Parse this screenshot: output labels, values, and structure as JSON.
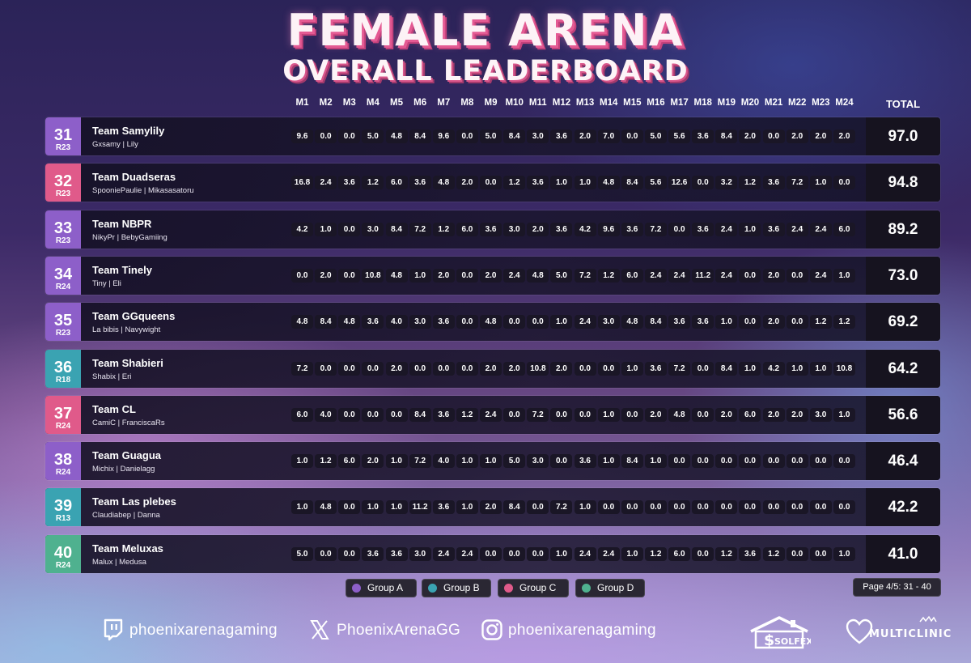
{
  "header": {
    "title": "FEMALE ARENA",
    "subtitle": "OVERALL LEADERBOARD"
  },
  "columns": [
    "M1",
    "M2",
    "M3",
    "M4",
    "M5",
    "M6",
    "M7",
    "M8",
    "M9",
    "M10",
    "M11",
    "M12",
    "M13",
    "M14",
    "M15",
    "M16",
    "M17",
    "M18",
    "M19",
    "M20",
    "M21",
    "M22",
    "M23",
    "M24"
  ],
  "total_label": "TOTAL",
  "colors": {
    "group_a": "#8d5fc9",
    "group_b": "#3aa3b2",
    "group_c": "#e05a8a",
    "group_d": "#4fb18f"
  },
  "rows": [
    {
      "rank": "31",
      "sub": "R23",
      "group": "group_a",
      "team": "Team Samylily",
      "players": "Gxsamy | Lily",
      "scores": [
        "9.6",
        "0.0",
        "0.0",
        "5.0",
        "4.8",
        "8.4",
        "9.6",
        "0.0",
        "5.0",
        "8.4",
        "3.0",
        "3.6",
        "2.0",
        "7.0",
        "0.0",
        "5.0",
        "5.6",
        "3.6",
        "8.4",
        "2.0",
        "0.0",
        "2.0",
        "2.0",
        "2.0"
      ],
      "total": "97.0"
    },
    {
      "rank": "32",
      "sub": "R23",
      "group": "group_c",
      "team": "Team Duadseras",
      "players": "SpooniePaulie | Mikasasatoru",
      "scores": [
        "16.8",
        "2.4",
        "3.6",
        "1.2",
        "6.0",
        "3.6",
        "4.8",
        "2.0",
        "0.0",
        "1.2",
        "3.6",
        "1.0",
        "1.0",
        "4.8",
        "8.4",
        "5.6",
        "12.6",
        "0.0",
        "3.2",
        "1.2",
        "3.6",
        "7.2",
        "1.0",
        "0.0"
      ],
      "total": "94.8"
    },
    {
      "rank": "33",
      "sub": "R23",
      "group": "group_a",
      "team": "Team NBPR",
      "players": "NikyPr | BebyGamiing",
      "scores": [
        "4.2",
        "1.0",
        "0.0",
        "3.0",
        "8.4",
        "7.2",
        "1.2",
        "6.0",
        "3.6",
        "3.0",
        "2.0",
        "3.6",
        "4.2",
        "9.6",
        "3.6",
        "7.2",
        "0.0",
        "3.6",
        "2.4",
        "1.0",
        "3.6",
        "2.4",
        "2.4",
        "6.0"
      ],
      "total": "89.2"
    },
    {
      "rank": "34",
      "sub": "R24",
      "group": "group_a",
      "team": "Team Tinely",
      "players": "Tiny | Eli",
      "scores": [
        "0.0",
        "2.0",
        "0.0",
        "10.8",
        "4.8",
        "1.0",
        "2.0",
        "0.0",
        "2.0",
        "2.4",
        "4.8",
        "5.0",
        "7.2",
        "1.2",
        "6.0",
        "2.4",
        "2.4",
        "11.2",
        "2.4",
        "0.0",
        "2.0",
        "0.0",
        "2.4",
        "1.0"
      ],
      "total": "73.0"
    },
    {
      "rank": "35",
      "sub": "R23",
      "group": "group_a",
      "team": "Team GGqueens",
      "players": "La bibis | Navywight",
      "scores": [
        "4.8",
        "8.4",
        "4.8",
        "3.6",
        "4.0",
        "3.0",
        "3.6",
        "0.0",
        "4.8",
        "0.0",
        "0.0",
        "1.0",
        "2.4",
        "3.0",
        "4.8",
        "8.4",
        "3.6",
        "3.6",
        "1.0",
        "0.0",
        "2.0",
        "0.0",
        "1.2",
        "1.2"
      ],
      "total": "69.2"
    },
    {
      "rank": "36",
      "sub": "R18",
      "group": "group_b",
      "team": "Team Shabieri",
      "players": "Shabix | Eri",
      "scores": [
        "7.2",
        "0.0",
        "0.0",
        "0.0",
        "2.0",
        "0.0",
        "0.0",
        "0.0",
        "2.0",
        "2.0",
        "10.8",
        "2.0",
        "0.0",
        "0.0",
        "1.0",
        "3.6",
        "7.2",
        "0.0",
        "8.4",
        "1.0",
        "4.2",
        "1.0",
        "1.0",
        "10.8"
      ],
      "total": "64.2"
    },
    {
      "rank": "37",
      "sub": "R24",
      "group": "group_c",
      "team": "Team CL",
      "players": "CamiC | FranciscaRs",
      "scores": [
        "6.0",
        "4.0",
        "0.0",
        "0.0",
        "0.0",
        "8.4",
        "3.6",
        "1.2",
        "2.4",
        "0.0",
        "7.2",
        "0.0",
        "0.0",
        "1.0",
        "0.0",
        "2.0",
        "4.8",
        "0.0",
        "2.0",
        "6.0",
        "2.0",
        "2.0",
        "3.0",
        "1.0"
      ],
      "total": "56.6"
    },
    {
      "rank": "38",
      "sub": "R24",
      "group": "group_a",
      "team": "Team Guagua",
      "players": "Michix | Danielagg",
      "scores": [
        "1.0",
        "1.2",
        "6.0",
        "2.0",
        "1.0",
        "7.2",
        "4.0",
        "1.0",
        "1.0",
        "5.0",
        "3.0",
        "0.0",
        "3.6",
        "1.0",
        "8.4",
        "1.0",
        "0.0",
        "0.0",
        "0.0",
        "0.0",
        "0.0",
        "0.0",
        "0.0",
        "0.0"
      ],
      "total": "46.4"
    },
    {
      "rank": "39",
      "sub": "R13",
      "group": "group_b",
      "team": "Team Las plebes",
      "players": "Claudiabep | Danna",
      "scores": [
        "1.0",
        "4.8",
        "0.0",
        "1.0",
        "1.0",
        "11.2",
        "3.6",
        "1.0",
        "2.0",
        "8.4",
        "0.0",
        "7.2",
        "1.0",
        "0.0",
        "0.0",
        "0.0",
        "0.0",
        "0.0",
        "0.0",
        "0.0",
        "0.0",
        "0.0",
        "0.0",
        "0.0"
      ],
      "total": "42.2"
    },
    {
      "rank": "40",
      "sub": "R24",
      "group": "group_d",
      "team": "Team Meluxas",
      "players": "Malux | Medusa",
      "scores": [
        "5.0",
        "0.0",
        "0.0",
        "3.6",
        "3.6",
        "3.0",
        "2.4",
        "2.4",
        "0.0",
        "0.0",
        "0.0",
        "1.0",
        "2.4",
        "2.4",
        "1.0",
        "1.2",
        "6.0",
        "0.0",
        "1.2",
        "3.6",
        "1.2",
        "0.0",
        "0.0",
        "1.0"
      ],
      "total": "41.0"
    }
  ],
  "legend": [
    {
      "label": "Group A",
      "color": "#8d5fc9"
    },
    {
      "label": "Group B",
      "color": "#3aa3b2"
    },
    {
      "label": "Group C",
      "color": "#e05a8a"
    },
    {
      "label": "Group D",
      "color": "#4fb18f"
    }
  ],
  "pagination": "Page 4/5: 31 - 40",
  "footer": {
    "twitch": {
      "handle": "phoenixarenagaming",
      "icon": "twitch-icon"
    },
    "x": {
      "handle": "PhoenixArenaGG",
      "icon": "x-icon"
    },
    "instagram": {
      "handle": "phoenixarenagaming",
      "icon": "instagram-icon"
    },
    "sponsor1": {
      "name": "SOLFEX",
      "letter": "$"
    },
    "sponsor2": {
      "name": "MULTICLINIC"
    }
  }
}
